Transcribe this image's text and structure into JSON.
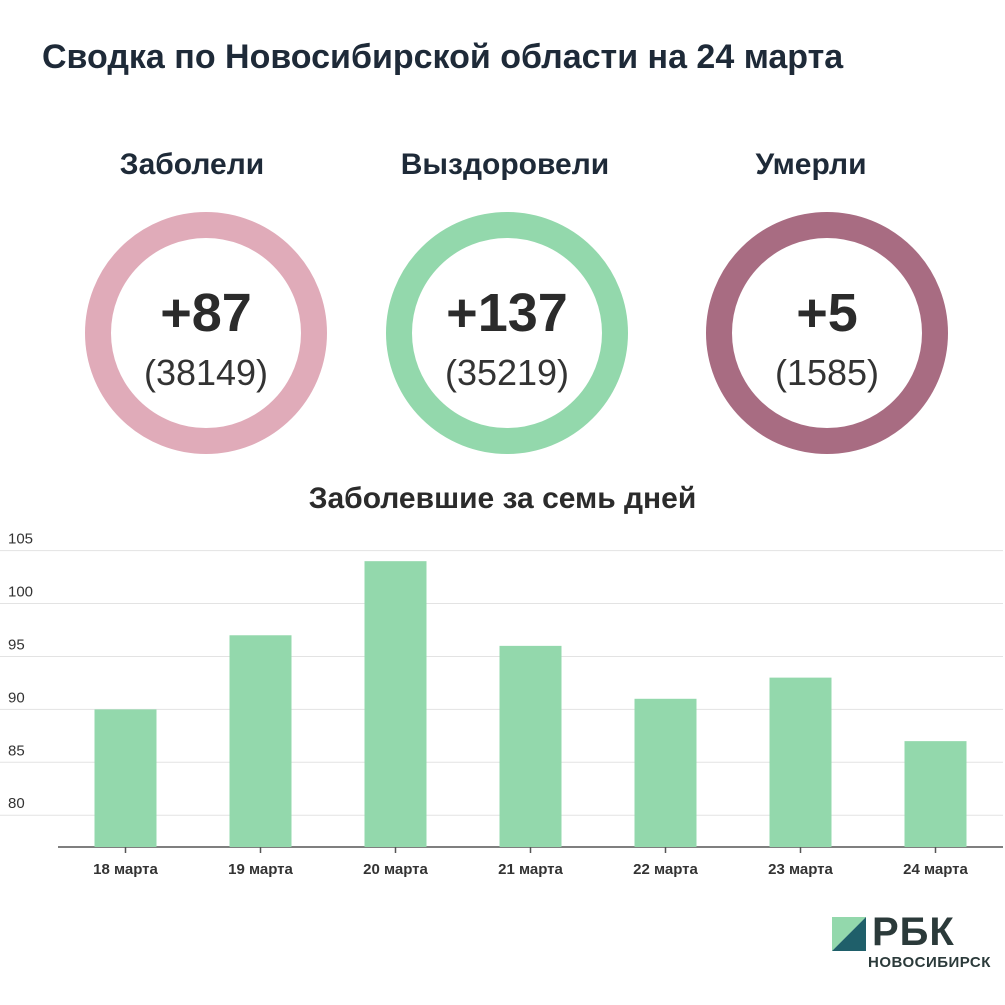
{
  "title": "Сводка по Новосибирской области на 24 марта",
  "stats": [
    {
      "label": "Заболели",
      "delta": "+87",
      "total": "(38149)",
      "color": "#e0abb9"
    },
    {
      "label": "Выздоровели",
      "delta": "+137",
      "total": "(35219)",
      "color": "#93d8ac"
    },
    {
      "label": "Умерли",
      "delta": "+5",
      "total": "(1585)",
      "color": "#a86c82"
    }
  ],
  "chart_data": {
    "type": "bar",
    "title": "Заболевшие за семь дней",
    "categories": [
      "18 марта",
      "19 марта",
      "20 марта",
      "21 марта",
      "22 марта",
      "23 марта",
      "24 марта"
    ],
    "values": [
      90,
      97,
      104,
      96,
      91,
      93,
      87
    ],
    "yticks": [
      80,
      85,
      90,
      95,
      100,
      105
    ],
    "ylim": [
      77,
      106
    ],
    "bar_color": "#93d8ac",
    "grid": true
  },
  "logo": {
    "word": "РБК",
    "city": "НОВОСИБИРСК",
    "colors": [
      "#93d8ac",
      "#1f5f6a"
    ]
  }
}
